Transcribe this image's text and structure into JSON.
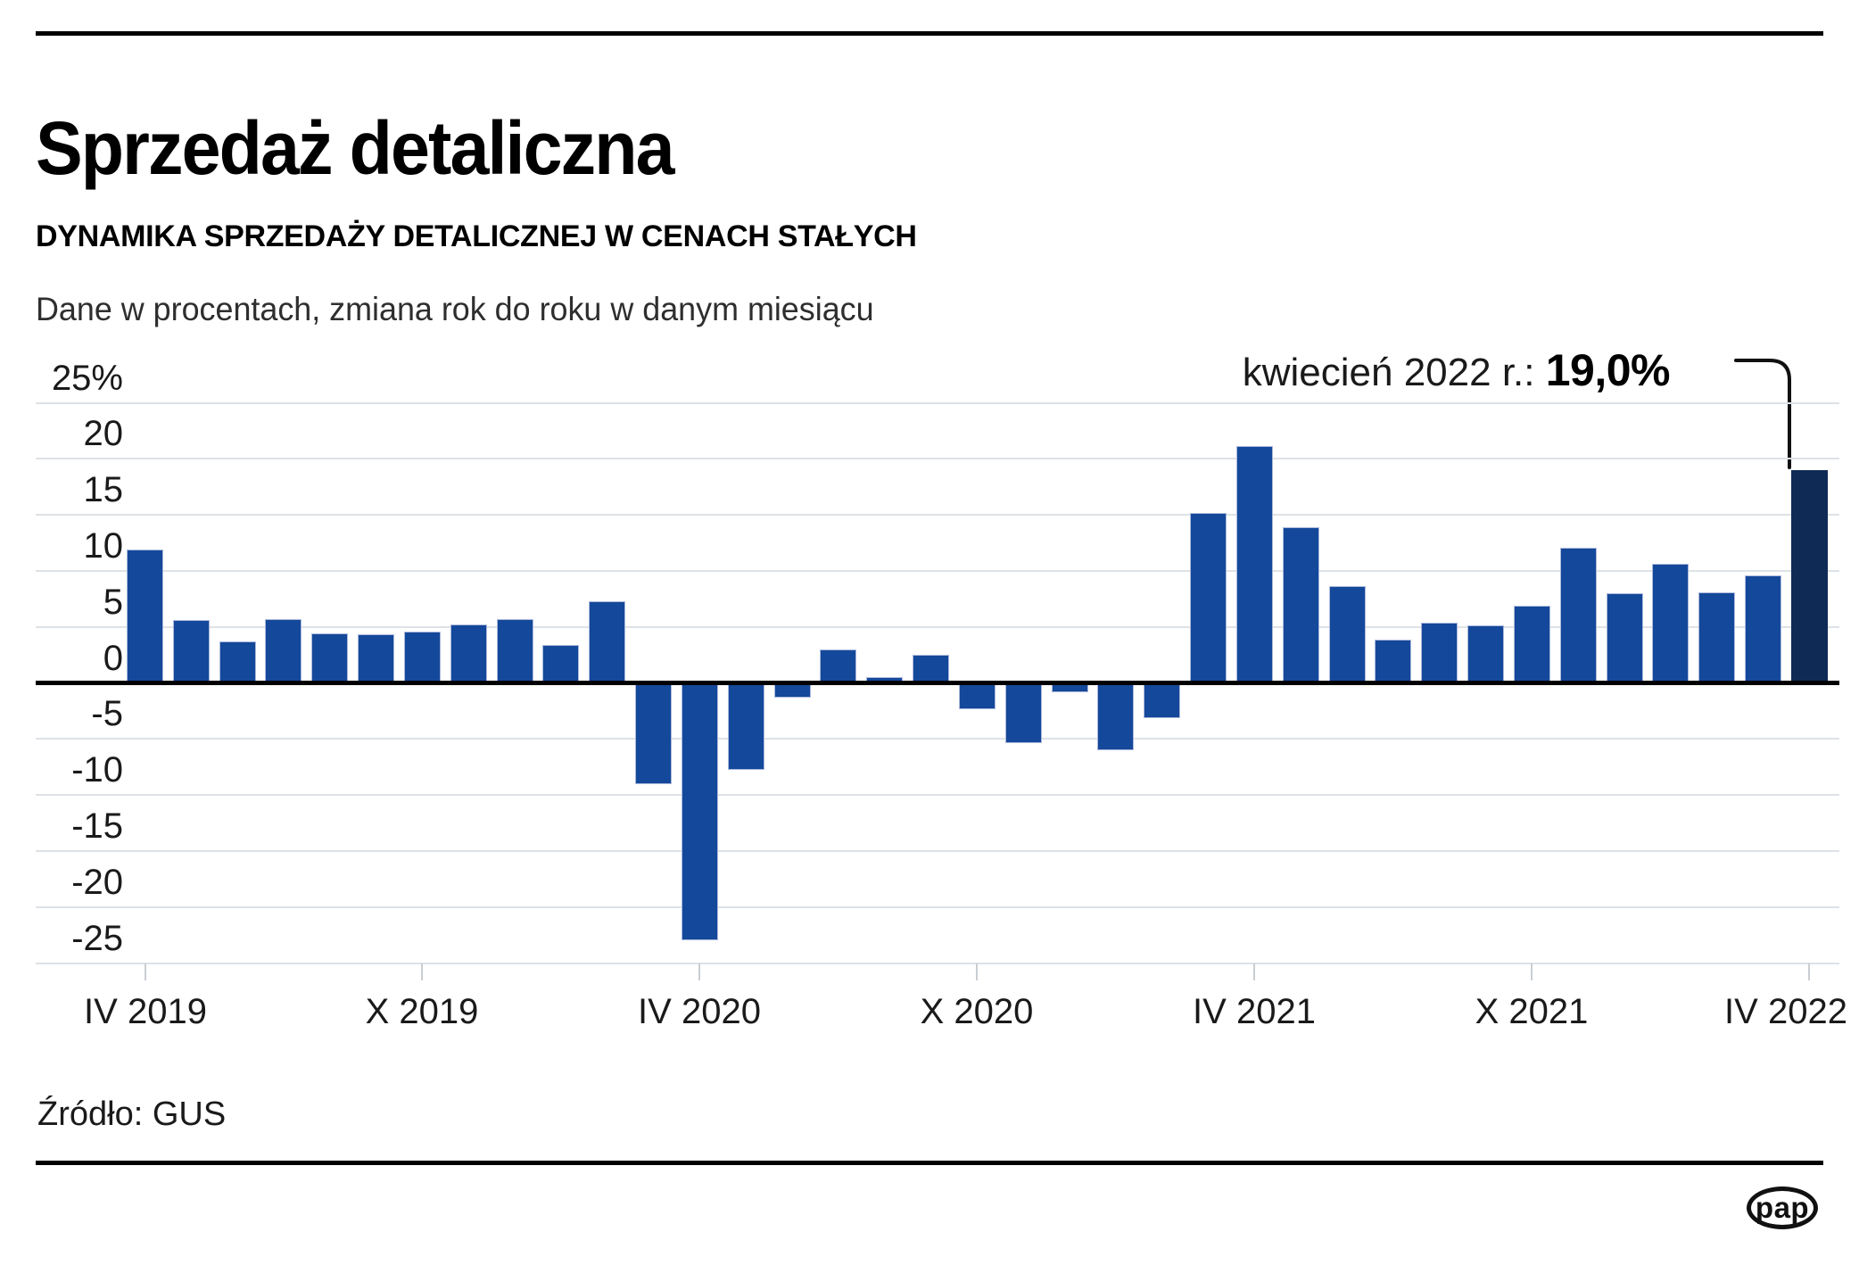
{
  "header": {
    "title": "Sprzedaż detaliczna",
    "subtitle": "DYNAMIKA SPRZEDAŻY DETALICZNEJ W CENACH STAŁYCH",
    "note": "Dane w procentach, zmiana rok do roku w danym miesiącu"
  },
  "annotation": {
    "label": "kwiecień 2022 r.: ",
    "value": "19,0%"
  },
  "chart_data": {
    "type": "bar",
    "title": "Dynamika sprzedaży detalicznej w cenach stałych",
    "unit": "percent, change year-over-year in given month",
    "months": [
      "IV 2019",
      "V 2019",
      "VI 2019",
      "VII 2019",
      "VIII 2019",
      "IX 2019",
      "X 2019",
      "XI 2019",
      "XII 2019",
      "I 2020",
      "II 2020",
      "III 2020",
      "IV 2020",
      "V 2020",
      "VI 2020",
      "VII 2020",
      "VIII 2020",
      "IX 2020",
      "X 2020",
      "XI 2020",
      "XII 2020",
      "I 2021",
      "II 2021",
      "III 2021",
      "IV 2021",
      "V 2021",
      "VI 2021",
      "VII 2021",
      "VIII 2021",
      "IX 2021",
      "X 2021",
      "XI 2021",
      "XII 2021",
      "I 2022",
      "II 2022",
      "III 2022",
      "IV 2022"
    ],
    "values": [
      11.9,
      5.6,
      3.7,
      5.7,
      4.4,
      4.3,
      4.6,
      5.2,
      5.7,
      3.4,
      7.3,
      -9.0,
      -22.9,
      -7.7,
      -1.3,
      3.0,
      0.5,
      2.5,
      -2.3,
      -5.3,
      -0.8,
      -6.0,
      -3.1,
      15.2,
      21.1,
      13.9,
      8.6,
      3.9,
      5.4,
      5.1,
      6.9,
      12.1,
      8.0,
      10.6,
      8.1,
      9.6,
      19.0
    ],
    "highlight_month": "IV 2022",
    "highlight_value": "19,0%",
    "x_tick_labels": [
      "IV 2019",
      "X 2019",
      "IV 2020",
      "X 2020",
      "IV 2021",
      "X 2021",
      "IV 2022"
    ],
    "y_tick_labels": [
      "25%",
      "20",
      "15",
      "10",
      "5",
      "0",
      "-5",
      "-10",
      "-15",
      "-20",
      "-25"
    ],
    "y_tick_values": [
      25,
      20,
      15,
      10,
      5,
      0,
      -5,
      -10,
      -15,
      -20,
      -25
    ],
    "ylim": [
      -25,
      25
    ],
    "grid": "horizontal",
    "legend": "none",
    "bar_color": "#14489a",
    "highlight_color": "#102a56",
    "gridline_color": "#dde2e7",
    "zero_line_color": "#000000"
  },
  "footer": {
    "source": "Źródło: GUS",
    "logo_text": "pap"
  }
}
